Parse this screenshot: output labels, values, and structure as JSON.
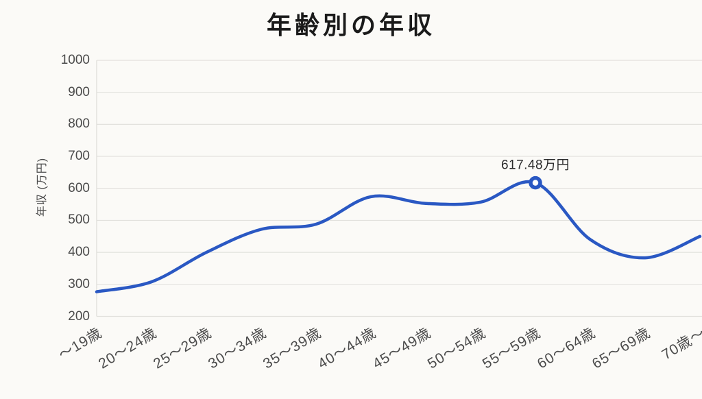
{
  "title": "年齢別の年収",
  "chart_data": {
    "type": "line",
    "title": "年齢別の年収",
    "ylabel": "年収 (万円)",
    "xlabel": "",
    "categories": [
      "～19歳",
      "20～24歳",
      "25～29歳",
      "30～34歳",
      "35～39歳",
      "40～44歳",
      "45～49歳",
      "50～54歳",
      "55～59歳",
      "60～64歳",
      "65～69歳",
      "70歳～"
    ],
    "values": [
      277,
      308,
      400,
      472,
      488,
      574,
      553,
      557,
      617.48,
      440,
      383,
      450
    ],
    "unit": "万円",
    "ylim": [
      200,
      1000
    ],
    "yticks": [
      1000,
      900,
      800,
      700,
      600,
      500,
      400,
      300,
      200
    ],
    "grid": "horizontal",
    "legend": "none",
    "smooth": true,
    "annotation": {
      "index": 8,
      "label": "617.48万円"
    },
    "marker_style": "open-circle"
  },
  "colors": {
    "background": "#fbfaf7",
    "grid": "#e2e1dd",
    "axis_line": "#dddcd8",
    "axis_text": "#4b4b4b",
    "title_text": "#1a1a1a",
    "annotation_text": "#2b2b2b",
    "line": "#2a58c3",
    "marker_fill": "#ffffff"
  }
}
